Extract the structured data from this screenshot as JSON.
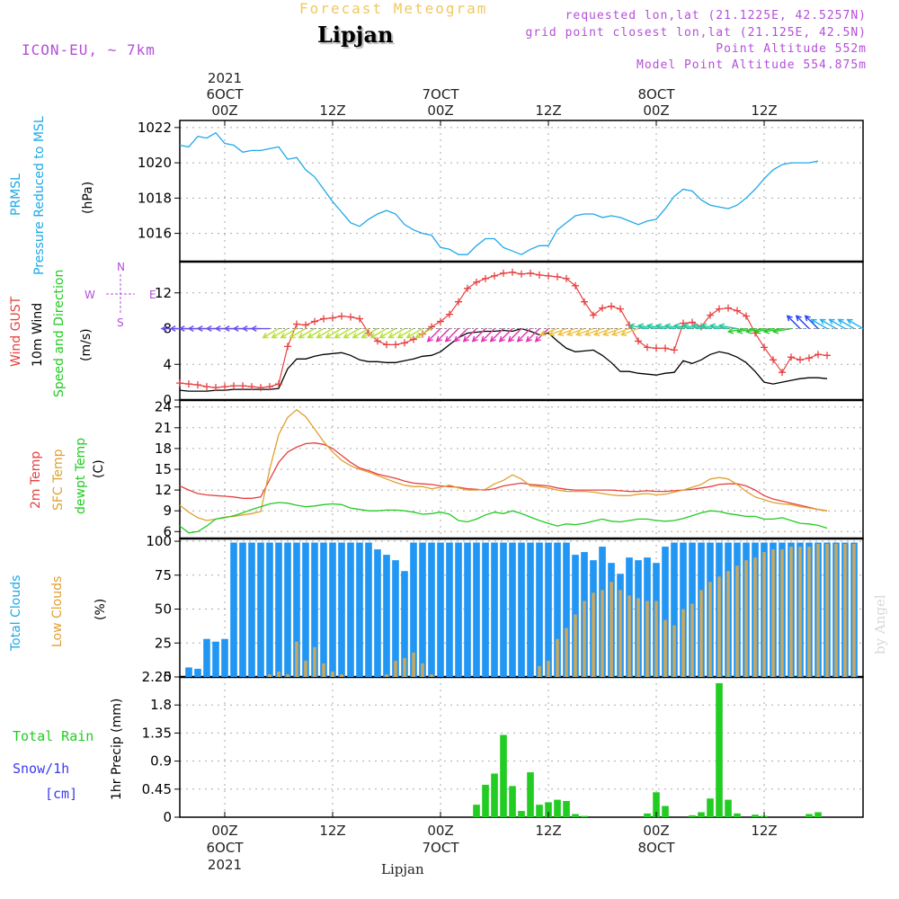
{
  "header": {
    "chart_type_title": "Forecast Meteogram",
    "location": "Lipjan",
    "model": "ICON-EU, ~ 7km",
    "requested": "requested lon,lat (21.1225E, 42.5257N)",
    "grid_point": "grid point closest lon,lat (21.125E, 42.5N)",
    "point_altitude": "Point Altitude 552m",
    "model_altitude": "Model Point Altitude 554.875m",
    "footer_location": "Lipjan",
    "credit": "by Angel"
  },
  "time_axis": {
    "top_labels": [
      {
        "t": 0,
        "lines": [
          "2021",
          "6OCT",
          "00Z"
        ]
      },
      {
        "t": 12,
        "lines": [
          "12Z"
        ]
      },
      {
        "t": 24,
        "lines": [
          "7OCT",
          "00Z"
        ]
      },
      {
        "t": 36,
        "lines": [
          "12Z"
        ]
      },
      {
        "t": 48,
        "lines": [
          "8OCT",
          "00Z"
        ]
      },
      {
        "t": 60,
        "lines": [
          "12Z"
        ]
      }
    ],
    "bottom_labels": [
      {
        "t": 0,
        "lines": [
          "00Z",
          "6OCT",
          "2021"
        ]
      },
      {
        "t": 12,
        "lines": [
          "12Z"
        ]
      },
      {
        "t": 24,
        "lines": [
          "00Z",
          "7OCT"
        ]
      },
      {
        "t": 36,
        "lines": [
          "12Z"
        ]
      },
      {
        "t": 48,
        "lines": [
          "00Z",
          "8OCT"
        ]
      },
      {
        "t": 60,
        "lines": [
          "12Z"
        ]
      }
    ],
    "range_hours": [
      -5,
      71
    ]
  },
  "panel_labels": {
    "pressure": {
      "a": "PRMSL",
      "b": "Pressure Reduced to MSL",
      "unit": "(hPa)",
      "color_a": "#1fa8e8"
    },
    "wind": {
      "gust": "Wind GUST",
      "wind10": "10m Wind",
      "speed": "Speed and Direction",
      "unit": "(m/s)",
      "compass": {
        "w": "W",
        "e": "E",
        "n": "N",
        "s": "S"
      }
    },
    "temp": {
      "t2m": "2m Temp",
      "sfc": "SFC Temp",
      "dewpt": "dewpt Temp",
      "unit": "(C)"
    },
    "cloud": {
      "total": "Total Clouds",
      "low": "Low Clouds",
      "unit": "(%)"
    },
    "precip": {
      "total_rain": "Total  Rain",
      "snow": "Snow/1h",
      "snow_unit": "[cm]",
      "axis": "1hr Precip (mm)"
    }
  },
  "colors": {
    "pressure": "#1fa8e8",
    "gust": "#e84040",
    "wind10": "#000000",
    "t2m": "#e84040",
    "sfc": "#e0a030",
    "dewpt": "#22cc22",
    "total_clouds": "#2196f3",
    "low_clouds": "#c8a860",
    "rain": "#22cc22",
    "snow": "#3b3bf0",
    "title": "#f0c860",
    "info": "#b44fd8"
  },
  "chart_data": [
    {
      "type": "line",
      "panel": "pressure",
      "title": "PRMSL Pressure Reduced to MSL",
      "ylabel": "(hPa)",
      "ylim": [
        1014.4,
        1022.4
      ],
      "yticks": [
        1016,
        1018,
        1020,
        1022
      ],
      "series": [
        {
          "name": "PRMSL",
          "x_start": -5,
          "x_step": 1,
          "values": [
            1021.0,
            1020.9,
            1021.5,
            1021.4,
            1021.7,
            1021.1,
            1021.0,
            1020.6,
            1020.7,
            1020.7,
            1020.8,
            1020.9,
            1020.2,
            1020.3,
            1019.6,
            1019.2,
            1018.5,
            1017.8,
            1017.2,
            1016.6,
            1016.4,
            1016.8,
            1017.1,
            1017.3,
            1017.1,
            1016.5,
            1016.2,
            1016.0,
            1015.9,
            1015.2,
            1015.1,
            1014.8,
            1014.8,
            1015.3,
            1015.7,
            1015.7,
            1015.2,
            1015.0,
            1014.8,
            1015.1,
            1015.3,
            1015.3,
            1016.2,
            1016.6,
            1017.0,
            1017.1,
            1017.1,
            1016.9,
            1017.0,
            1016.9,
            1016.7,
            1016.5,
            1016.7,
            1016.8,
            1017.4,
            1018.1,
            1018.5,
            1018.4,
            1017.9,
            1017.6,
            1017.5,
            1017.4,
            1017.6,
            1018.0,
            1018.5,
            1019.1,
            1019.6,
            1019.9,
            1020.0,
            1020.0,
            1020.0,
            1020.1
          ]
        }
      ]
    },
    {
      "type": "line",
      "panel": "wind",
      "title": "Wind GUST / 10m Wind Speed and Direction",
      "ylabel": "(m/s)",
      "ylim": [
        0,
        15.5
      ],
      "yticks": [
        0,
        4,
        8,
        12
      ],
      "series": [
        {
          "name": "Wind GUST",
          "x_start": -5,
          "x_step": 1,
          "values": [
            1.9,
            1.8,
            1.7,
            1.5,
            1.4,
            1.5,
            1.6,
            1.6,
            1.5,
            1.4,
            1.5,
            1.8,
            6.0,
            8.5,
            8.4,
            8.8,
            9.1,
            9.2,
            9.4,
            9.3,
            9.1,
            7.5,
            6.6,
            6.2,
            6.2,
            6.4,
            6.8,
            7.4,
            8.2,
            8.8,
            9.6,
            11.0,
            12.5,
            13.2,
            13.6,
            13.9,
            14.2,
            14.3,
            14.1,
            14.2,
            14.0,
            13.9,
            13.8,
            13.6,
            12.8,
            11.0,
            9.5,
            10.3,
            10.5,
            10.2,
            8.4,
            6.6,
            5.9,
            5.8,
            5.8,
            5.6,
            8.6,
            8.7,
            8.2,
            9.5,
            10.2,
            10.3,
            10.0,
            9.4,
            7.5,
            5.9,
            4.5,
            3.1,
            4.8,
            4.5,
            4.7,
            5.1,
            5.0
          ]
        },
        {
          "name": "10m Wind",
          "x_start": -5,
          "x_step": 1,
          "values": [
            1.1,
            1.0,
            1.0,
            1.0,
            1.1,
            1.1,
            1.2,
            1.2,
            1.2,
            1.2,
            1.2,
            1.3,
            3.5,
            4.6,
            4.6,
            4.9,
            5.1,
            5.2,
            5.3,
            5.0,
            4.5,
            4.3,
            4.3,
            4.2,
            4.2,
            4.4,
            4.6,
            4.9,
            5.0,
            5.4,
            6.2,
            7.0,
            7.5,
            7.6,
            7.7,
            7.7,
            7.8,
            7.7,
            8.0,
            7.7,
            7.3,
            7.5,
            6.6,
            5.8,
            5.4,
            5.5,
            5.6,
            5.0,
            4.2,
            3.2,
            3.2,
            3.0,
            2.9,
            2.8,
            3.0,
            3.1,
            4.4,
            4.1,
            4.5,
            5.1,
            5.4,
            5.2,
            4.8,
            4.2,
            3.2,
            2.0,
            1.8,
            2.0,
            2.2,
            2.4,
            2.5,
            2.5,
            2.4
          ]
        }
      ],
      "direction_arrows": {
        "x_start": -5,
        "x_step": 1,
        "level": 8,
        "segments": [
          {
            "from": -5,
            "to": 5,
            "angle_deg": 180,
            "color": "#6a4ee8"
          },
          {
            "from": 6,
            "to": 23,
            "angle_deg": 210,
            "color": "#b6e030"
          },
          {
            "from": 24,
            "to": 36,
            "angle_deg": 225,
            "color": "#e030b0"
          },
          {
            "from": 37,
            "to": 46,
            "angle_deg": 200,
            "color": "#f0c040"
          },
          {
            "from": 47,
            "to": 57,
            "angle_deg": 170,
            "color": "#20c8a0"
          },
          {
            "from": 58,
            "to": 63,
            "angle_deg": 190,
            "color": "#22cc22"
          },
          {
            "from": 64,
            "to": 66,
            "angle_deg": 135,
            "color": "#2040f0"
          },
          {
            "from": 67,
            "to": 71,
            "angle_deg": 150,
            "color": "#20b0f0"
          }
        ]
      }
    },
    {
      "type": "line",
      "panel": "temp",
      "title": "2m Temp / SFC Temp / dewpt Temp",
      "ylabel": "(C)",
      "ylim": [
        5,
        25
      ],
      "yticks": [
        6,
        9,
        12,
        15,
        18,
        21,
        24
      ],
      "series": [
        {
          "name": "2m Temp",
          "x_start": -5,
          "x_step": 1,
          "values": [
            12.6,
            12.0,
            11.5,
            11.3,
            11.2,
            11.1,
            11.0,
            10.8,
            10.8,
            11.0,
            13.5,
            16.0,
            17.5,
            18.2,
            18.7,
            18.8,
            18.6,
            18.0,
            17.0,
            16.0,
            15.2,
            14.8,
            14.3,
            14.0,
            13.7,
            13.3,
            13.0,
            12.9,
            12.8,
            12.6,
            12.5,
            12.4,
            12.2,
            12.1,
            12.0,
            12.2,
            12.6,
            12.8,
            13.0,
            12.8,
            12.7,
            12.6,
            12.3,
            12.1,
            12.0,
            12.0,
            12.0,
            12.0,
            12.0,
            11.9,
            11.8,
            11.8,
            11.9,
            11.8,
            11.8,
            11.9,
            12.0,
            12.1,
            12.3,
            12.5,
            12.8,
            12.9,
            12.9,
            12.6,
            12.0,
            11.2,
            10.7,
            10.4,
            10.1,
            9.8,
            9.5,
            9.2,
            9.0
          ]
        },
        {
          "name": "SFC Temp",
          "x_start": -5,
          "x_step": 1,
          "values": [
            9.8,
            8.8,
            8.0,
            7.6,
            7.8,
            8.1,
            8.2,
            8.4,
            8.6,
            8.9,
            15.0,
            20.0,
            22.5,
            23.6,
            22.6,
            20.8,
            19.0,
            17.5,
            16.3,
            15.5,
            15.0,
            14.6,
            14.1,
            13.6,
            13.1,
            12.7,
            12.5,
            12.5,
            12.2,
            12.4,
            12.7,
            12.3,
            12.0,
            12.0,
            12.1,
            12.9,
            13.4,
            14.2,
            13.6,
            12.6,
            12.5,
            12.3,
            12.0,
            11.8,
            11.8,
            11.8,
            11.7,
            11.5,
            11.3,
            11.2,
            11.2,
            11.4,
            11.5,
            11.3,
            11.4,
            11.7,
            12.0,
            12.4,
            12.8,
            13.6,
            13.8,
            13.6,
            12.8,
            11.8,
            11.0,
            10.6,
            10.2,
            10.0,
            9.9,
            9.6,
            9.4,
            9.2,
            9.0
          ]
        },
        {
          "name": "dewpt Temp",
          "x_start": -5,
          "x_step": 1,
          "values": [
            6.8,
            5.8,
            6.0,
            6.8,
            7.8,
            8.0,
            8.3,
            8.7,
            9.2,
            9.6,
            10.0,
            10.2,
            10.1,
            9.8,
            9.6,
            9.7,
            9.9,
            10.0,
            9.9,
            9.4,
            9.2,
            9.0,
            9.0,
            9.1,
            9.1,
            9.0,
            8.8,
            8.5,
            8.6,
            8.8,
            8.5,
            7.6,
            7.4,
            7.8,
            8.4,
            8.8,
            8.6,
            9.0,
            8.6,
            8.1,
            7.6,
            7.2,
            6.8,
            7.1,
            7.0,
            7.2,
            7.5,
            7.8,
            7.5,
            7.4,
            7.6,
            7.8,
            7.8,
            7.6,
            7.5,
            7.6,
            7.9,
            8.3,
            8.7,
            9.0,
            8.9,
            8.6,
            8.4,
            8.2,
            8.2,
            7.8,
            7.8,
            8.0,
            7.6,
            7.2,
            7.1,
            6.9,
            6.5
          ]
        }
      ]
    },
    {
      "type": "bar",
      "panel": "cloud",
      "title": "Total Clouds / Low Clouds",
      "ylabel": "(%)",
      "ylim": [
        0,
        102
      ],
      "yticks": [
        0,
        25,
        50,
        75,
        100
      ],
      "series": [
        {
          "name": "Total Clouds",
          "x_start": -4,
          "x_step": 1,
          "values": [
            7,
            6,
            28,
            26,
            28,
            99,
            99,
            99,
            99,
            99,
            99,
            99,
            99,
            99,
            99,
            99,
            99,
            99,
            99,
            99,
            99,
            94,
            90,
            86,
            78,
            99,
            99,
            99,
            99,
            99,
            99,
            99,
            99,
            99,
            99,
            99,
            99,
            99,
            99,
            99,
            99,
            99,
            99,
            90,
            92,
            86,
            96,
            84,
            76,
            88,
            86,
            88,
            84,
            96,
            99,
            99,
            99,
            99,
            99,
            99,
            99,
            99,
            99,
            99,
            99,
            99,
            99,
            99,
            99,
            99,
            99,
            99,
            99,
            99,
            99
          ]
        },
        {
          "name": "Low Clouds",
          "x_start": -4,
          "x_step": 1,
          "values": [
            0,
            0,
            0,
            0,
            0,
            0,
            0,
            0,
            0,
            2,
            4,
            2,
            26,
            12,
            22,
            10,
            4,
            2,
            0,
            0,
            0,
            0,
            2,
            12,
            14,
            18,
            10,
            2,
            0,
            0,
            0,
            0,
            0,
            0,
            0,
            0,
            0,
            0,
            0,
            8,
            12,
            28,
            36,
            46,
            56,
            62,
            64,
            70,
            64,
            60,
            58,
            56,
            56,
            42,
            38,
            50,
            54,
            64,
            70,
            74,
            78,
            82,
            86,
            88,
            92,
            94,
            94,
            96,
            96,
            96,
            98,
            98,
            98,
            98,
            98
          ]
        }
      ]
    },
    {
      "type": "bar",
      "panel": "precip",
      "title": "1hr Precip (mm)",
      "ylabel": "1hr Precip (mm)",
      "ylim": [
        0,
        2.25
      ],
      "yticks": [
        0,
        0.45,
        0.9,
        1.35,
        1.8,
        2.25
      ],
      "ytick_labels": [
        "0",
        "0.45",
        "0.9",
        "1.35",
        "1.8",
        "2.25"
      ],
      "series": [
        {
          "name": "Total Rain",
          "x_start": -5,
          "x_step": 1,
          "values": [
            0,
            0,
            0,
            0,
            0,
            0,
            0,
            0,
            0,
            0,
            0,
            0,
            0,
            0,
            0,
            0,
            0,
            0,
            0,
            0,
            0,
            0,
            0,
            0,
            0,
            0,
            0,
            0,
            0,
            0,
            0,
            0,
            0,
            0.2,
            0.52,
            0.7,
            1.32,
            0.5,
            0.1,
            0.72,
            0.2,
            0.24,
            0.28,
            0.26,
            0.05,
            0.02,
            0,
            0,
            0,
            0,
            0,
            0,
            0.06,
            0.4,
            0.18,
            0,
            0,
            0.03,
            0.08,
            0.3,
            2.15,
            0.28,
            0.06,
            0,
            0.04,
            0.02,
            0,
            0,
            0,
            0,
            0.05,
            0.08
          ]
        },
        {
          "name": "Snow/1h",
          "x_start": -5,
          "x_step": 1,
          "values": [
            0,
            0,
            0,
            0,
            0,
            0,
            0,
            0,
            0,
            0,
            0,
            0,
            0,
            0,
            0,
            0,
            0,
            0,
            0,
            0,
            0,
            0,
            0,
            0,
            0,
            0,
            0,
            0,
            0,
            0,
            0,
            0,
            0,
            0,
            0,
            0,
            0,
            0,
            0,
            0,
            0,
            0,
            0,
            0,
            0,
            0,
            0,
            0,
            0,
            0,
            0,
            0,
            0,
            0,
            0,
            0,
            0,
            0,
            0,
            0,
            0,
            0,
            0,
            0,
            0,
            0,
            0,
            0,
            0,
            0,
            0,
            0
          ]
        }
      ]
    }
  ]
}
